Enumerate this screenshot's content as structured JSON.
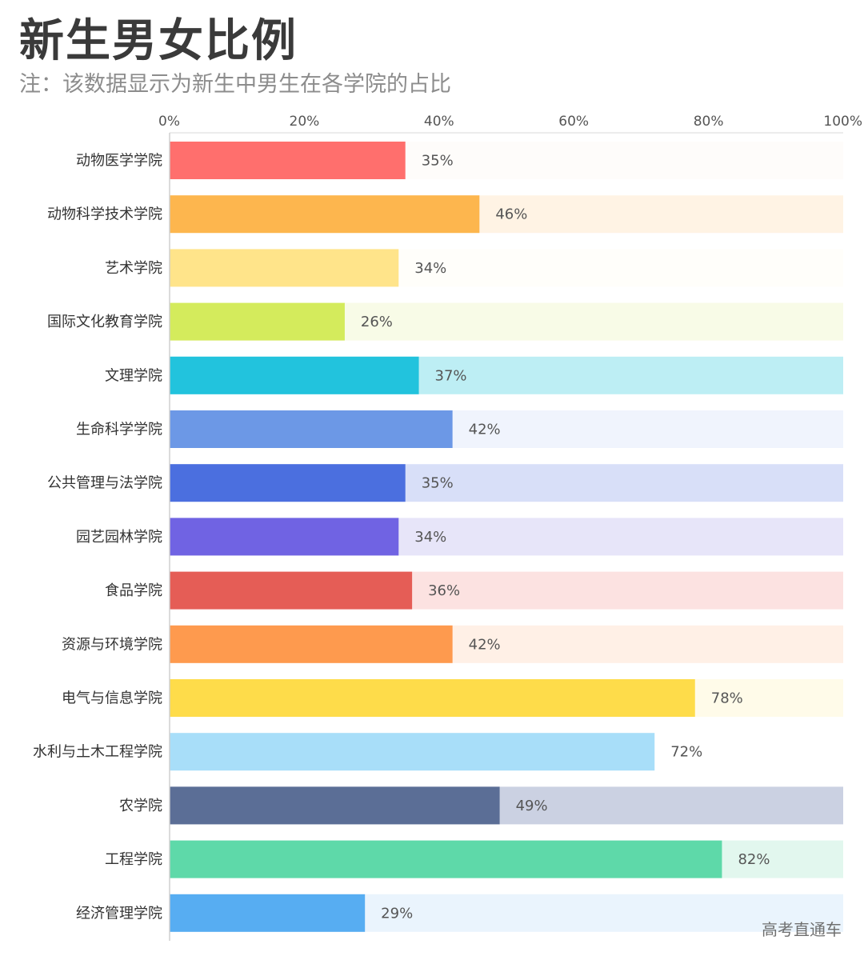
{
  "header": {
    "title": "新生男女比例",
    "subtitle": "注：该数据显示为新生中男生在各学院的占比"
  },
  "watermark": "高考直通车",
  "chart_data": {
    "type": "bar",
    "orientation": "horizontal",
    "title": "新生男女比例",
    "subtitle": "注：该数据显示为新生中男生在各学院的占比",
    "xlim": [
      0,
      100
    ],
    "ticks": [
      0,
      20,
      40,
      60,
      80,
      100
    ],
    "tick_labels": [
      "0%",
      "20%",
      "40%",
      "60%",
      "80%",
      "100%"
    ],
    "categories": [
      "动物医学学院",
      "动物科学技术学院",
      "艺术学院",
      "国际文化教育学院",
      "文理学院",
      "生命科学学院",
      "公共管理与法学院",
      "园艺园林学院",
      "食品学院",
      "资源与环境学院",
      "电气与信息学院",
      "水利与土木工程学院",
      "农学院",
      "工程学院",
      "经济管理学院"
    ],
    "values": [
      35,
      46,
      34,
      26,
      37,
      42,
      35,
      34,
      36,
      42,
      78,
      72,
      49,
      82,
      29
    ],
    "value_labels": [
      "35%",
      "46%",
      "34%",
      "26%",
      "37%",
      "42%",
      "35%",
      "34%",
      "36%",
      "42%",
      "78%",
      "72%",
      "49%",
      "82%",
      "29%"
    ],
    "colors": [
      "#ff6f6d",
      "#fdb64e",
      "#ffe48a",
      "#d4eb5c",
      "#22c3dd",
      "#6c98e6",
      "#4b6fdf",
      "#7063e3",
      "#e55d56",
      "#fe9a4e",
      "#fedc4a",
      "#a8def9",
      "#5b6e96",
      "#5ed9a9",
      "#57adf2"
    ],
    "track_colors": [
      "#fefcfa",
      "#fff3e4",
      "#fffefa",
      "#f8fbe7",
      "#bdeef4",
      "#f0f4fd",
      "#d8dff8",
      "#e7e5f9",
      "#fce2e1",
      "#fff0e6",
      "#fffbe9",
      "#ffffff",
      "#cbd1e2",
      "#e2f7ee",
      "#eaf4fd"
    ]
  }
}
